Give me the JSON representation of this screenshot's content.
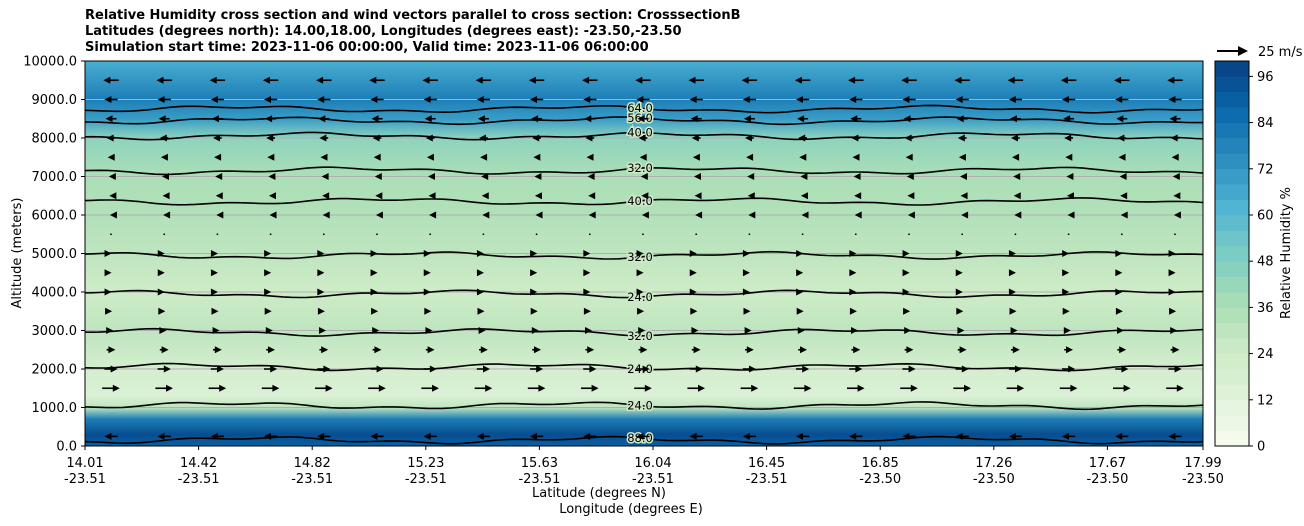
{
  "chart_data": {
    "type": "heatmap",
    "title_lines": [
      "Relative Humidity cross section and wind vectors parallel to cross section: CrosssectionB",
      "Latitudes (degrees north): 14.00,18.00, Longitudes (degrees east): -23.50,-23.50",
      "Simulation start time: 2023-11-06 00:00:00, Valid time: 2023-11-06 06:00:00"
    ],
    "xlabel_lat": "Latitude (degrees N)",
    "xlabel_lon": "Longitude (degrees E)",
    "ylabel": "Altitude (meters)",
    "x_ticks": [
      {
        "lat": "14.01",
        "lon": "-23.51"
      },
      {
        "lat": "14.42",
        "lon": "-23.51"
      },
      {
        "lat": "14.82",
        "lon": "-23.51"
      },
      {
        "lat": "15.23",
        "lon": "-23.51"
      },
      {
        "lat": "15.63",
        "lon": "-23.51"
      },
      {
        "lat": "16.04",
        "lon": "-23.51"
      },
      {
        "lat": "16.45",
        "lon": "-23.51"
      },
      {
        "lat": "16.85",
        "lon": "-23.50"
      },
      {
        "lat": "17.26",
        "lon": "-23.50"
      },
      {
        "lat": "17.67",
        "lon": "-23.50"
      },
      {
        "lat": "17.99",
        "lon": "-23.50"
      }
    ],
    "y_ticks": [
      "0.0",
      "1000.0",
      "2000.0",
      "3000.0",
      "4000.0",
      "5000.0",
      "6000.0",
      "7000.0",
      "8000.0",
      "9000.0",
      "10000.0"
    ],
    "ylim": [
      0,
      10000
    ],
    "grid": "horizontal",
    "colorbar": {
      "label": "Relative Humidity %",
      "ticks": [
        "0",
        "12",
        "24",
        "36",
        "48",
        "60",
        "72",
        "84",
        "96"
      ],
      "range": [
        0,
        100
      ],
      "colormap": "GnBu"
    },
    "quiver_key": {
      "label": "25 m/s"
    },
    "humidity_profile": [
      {
        "alt": 0,
        "rh": 90
      },
      {
        "alt": 300,
        "rh": 96
      },
      {
        "alt": 700,
        "rh": 80
      },
      {
        "alt": 1000,
        "rh": 30
      },
      {
        "alt": 1300,
        "rh": 16
      },
      {
        "alt": 2000,
        "rh": 20
      },
      {
        "alt": 3000,
        "rh": 30
      },
      {
        "alt": 4000,
        "rh": 24
      },
      {
        "alt": 5000,
        "rh": 30
      },
      {
        "alt": 6000,
        "rh": 34
      },
      {
        "alt": 7000,
        "rh": 36
      },
      {
        "alt": 8000,
        "rh": 45
      },
      {
        "alt": 8500,
        "rh": 70
      },
      {
        "alt": 9000,
        "rh": 80
      },
      {
        "alt": 10000,
        "rh": 64
      }
    ],
    "contour_lines": [
      {
        "label": "88.0",
        "alt": 150
      },
      {
        "label": "24.0",
        "alt": 1050
      },
      {
        "label": "24.0",
        "alt": 2050
      },
      {
        "label": "32.0",
        "alt": 2950
      },
      {
        "label": "24.0",
        "alt": 3950
      },
      {
        "label": "32.0",
        "alt": 4950
      },
      {
        "label": "40.0",
        "alt": 6350
      },
      {
        "label": "32.0",
        "alt": 7150
      },
      {
        "label": "40.0",
        "alt": 8050
      },
      {
        "label": "56.0",
        "alt": 8450
      },
      {
        "label": "64.0",
        "alt": 8750
      }
    ],
    "wind_rows": [
      {
        "alt": 250,
        "u": -6
      },
      {
        "alt": 1500,
        "u": 8
      },
      {
        "alt": 2000,
        "u": 6
      },
      {
        "alt": 2500,
        "u": 4
      },
      {
        "alt": 3000,
        "u": 2
      },
      {
        "alt": 3500,
        "u": 1
      },
      {
        "alt": 4000,
        "u": 0.5
      },
      {
        "alt": 4500,
        "u": 0.5
      },
      {
        "alt": 5000,
        "u": 0.5
      },
      {
        "alt": 5500,
        "u": 0
      },
      {
        "alt": 6000,
        "u": -1
      },
      {
        "alt": 6500,
        "u": -1.5
      },
      {
        "alt": 7000,
        "u": -2
      },
      {
        "alt": 7500,
        "u": -3
      },
      {
        "alt": 8000,
        "u": -4
      },
      {
        "alt": 8500,
        "u": -5
      },
      {
        "alt": 9000,
        "u": -6
      },
      {
        "alt": 9500,
        "u": -7
      }
    ]
  }
}
